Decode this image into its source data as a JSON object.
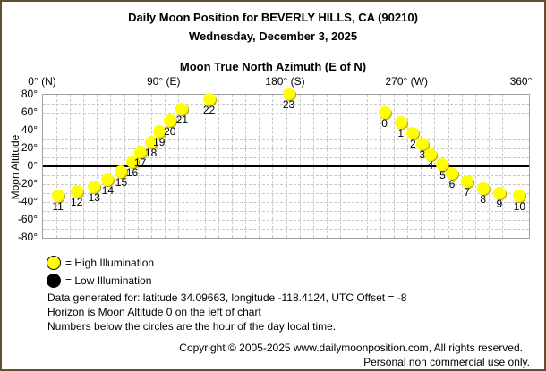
{
  "header": {
    "title": "Daily Moon Position for BEVERLY HILLS, CA (90210)",
    "date": "Wednesday, December 3, 2025"
  },
  "chart_data": {
    "type": "scatter",
    "title": "Daily Moon Position for BEVERLY HILLS, CA (90210)",
    "subtitle": "Wednesday, December 3, 2025",
    "xlabel": "Moon True North Azimuth (E of N)",
    "ylabel": "Moon Altitude",
    "xlim": [
      0,
      360
    ],
    "ylim": [
      -80,
      80
    ],
    "x_ticks": [
      "0° (N)",
      "90° (E)",
      "180° (S)",
      "270° (W)",
      "360°"
    ],
    "y_ticks": [
      "80°",
      "60°",
      "40°",
      "20°",
      "0°",
      "-20°",
      "-40°",
      "-60°",
      "-80°"
    ],
    "grid": true,
    "horizon_line": 0,
    "points": [
      {
        "hour": 0,
        "azimuth": 253,
        "altitude": 60,
        "illumination": "high"
      },
      {
        "hour": 1,
        "azimuth": 265,
        "altitude": 49,
        "illumination": "high"
      },
      {
        "hour": 2,
        "azimuth": 274,
        "altitude": 37,
        "illumination": "high"
      },
      {
        "hour": 3,
        "azimuth": 281,
        "altitude": 25,
        "illumination": "high"
      },
      {
        "hour": 4,
        "azimuth": 287,
        "altitude": 13,
        "illumination": "high"
      },
      {
        "hour": 5,
        "azimuth": 296,
        "altitude": 2,
        "illumination": "high"
      },
      {
        "hour": 6,
        "azimuth": 303,
        "altitude": -8,
        "illumination": "high"
      },
      {
        "hour": 7,
        "azimuth": 314,
        "altitude": -17,
        "illumination": "high"
      },
      {
        "hour": 8,
        "azimuth": 326,
        "altitude": -25,
        "illumination": "high"
      },
      {
        "hour": 9,
        "azimuth": 338,
        "altitude": -30,
        "illumination": "high"
      },
      {
        "hour": 10,
        "azimuth": 353,
        "altitude": -33,
        "illumination": "high"
      },
      {
        "hour": 11,
        "azimuth": 11,
        "altitude": -33,
        "illumination": "high"
      },
      {
        "hour": 12,
        "azimuth": 25,
        "altitude": -28,
        "illumination": "high"
      },
      {
        "hour": 13,
        "azimuth": 38,
        "altitude": -23,
        "illumination": "high"
      },
      {
        "hour": 14,
        "azimuth": 48,
        "altitude": -15,
        "illumination": "high"
      },
      {
        "hour": 15,
        "azimuth": 58,
        "altitude": -6,
        "illumination": "high"
      },
      {
        "hour": 16,
        "azimuth": 66,
        "altitude": 5,
        "illumination": "high"
      },
      {
        "hour": 17,
        "azimuth": 72,
        "altitude": 16,
        "illumination": "high"
      },
      {
        "hour": 18,
        "azimuth": 80,
        "altitude": 27,
        "illumination": "high"
      },
      {
        "hour": 19,
        "azimuth": 86,
        "altitude": 39,
        "illumination": "high"
      },
      {
        "hour": 20,
        "azimuth": 94,
        "altitude": 51,
        "illumination": "high"
      },
      {
        "hour": 21,
        "azimuth": 103,
        "altitude": 64,
        "illumination": "high"
      },
      {
        "hour": 22,
        "azimuth": 123,
        "altitude": 75,
        "illumination": "high"
      },
      {
        "hour": 23,
        "azimuth": 182,
        "altitude": 81,
        "illumination": "high"
      }
    ],
    "legend": [
      {
        "label": "= High Illumination",
        "color": "#ffff00"
      },
      {
        "label": "= Low Illumination",
        "color": "#000000"
      }
    ]
  },
  "info": {
    "line1": "Data generated for: latitude 34.09663, longitude -118.4124, UTC Offset = -8",
    "line2": "Horizon is Moon Altitude 0 on the left of chart",
    "line3": "Numbers below the circles are the hour of the day local time."
  },
  "footer": {
    "copyright": "Copyright © 2005-2025 www.dailymoonposition.com, All rights reserved.",
    "usage": "Personal non commercial use only."
  },
  "colors": {
    "frame": "#5f5030",
    "moon_high": "#ffff00",
    "moon_low": "#000000",
    "grid": "#c8c8c8"
  }
}
